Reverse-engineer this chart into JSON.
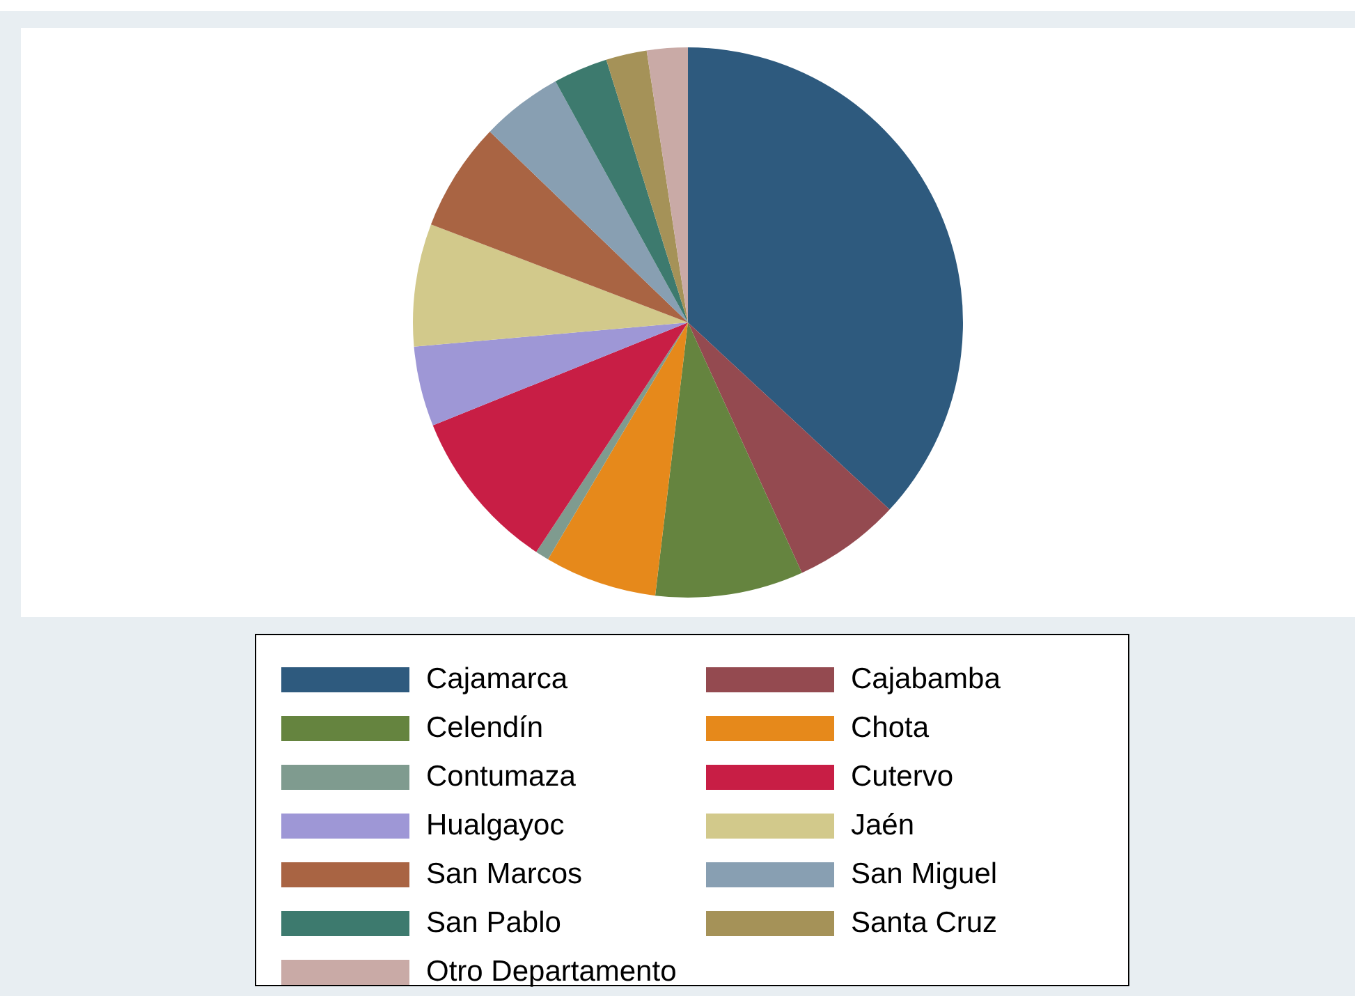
{
  "chart_data": {
    "type": "pie",
    "categories": [
      "Cajamarca",
      "Cajabamba",
      "Celendín",
      "Chota",
      "Contumaza",
      "Cutervo",
      "Hualgayoc",
      "Jaén",
      "San Marcos",
      "San Miguel",
      "San Pablo",
      "Santa Cruz",
      "Otro Departamento"
    ],
    "values": [
      36.9,
      6.3,
      8.7,
      6.6,
      0.8,
      9.6,
      4.7,
      7.2,
      6.4,
      4.8,
      3.2,
      2.4,
      2.4
    ],
    "colors": [
      "#2e5a7e",
      "#944a50",
      "#65843f",
      "#e6891b",
      "#7f9b8f",
      "#c81e45",
      "#9e97d6",
      "#d2c98b",
      "#a96443",
      "#889fb2",
      "#3d7a6e",
      "#a59258",
      "#c9aaa6"
    ],
    "legend": "bottom"
  }
}
